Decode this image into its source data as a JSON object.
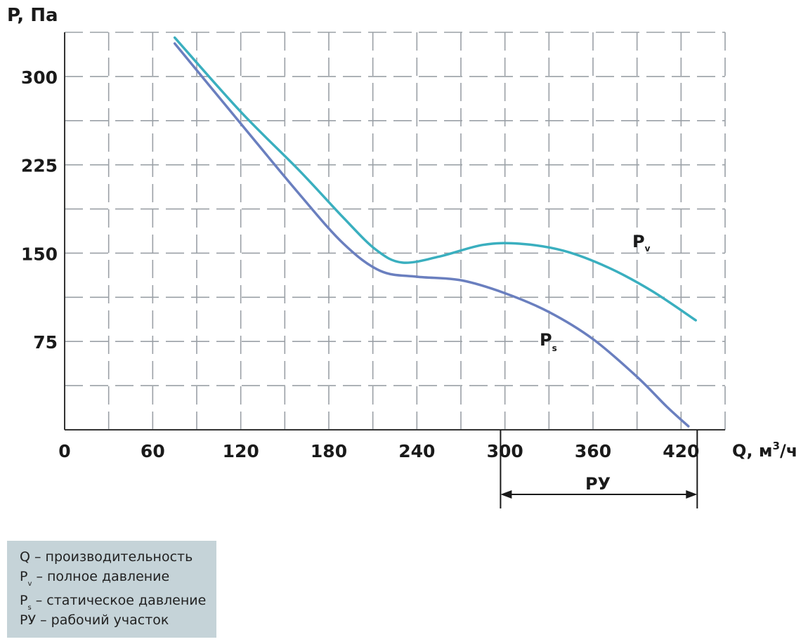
{
  "chart_data": {
    "type": "line",
    "ylabel": "P, Па",
    "xlabel_main": "Q, м",
    "xlabel_sup": "3",
    "xlabel_tail": "/ч",
    "xlim": [
      0,
      450
    ],
    "ylim": [
      0,
      337.5
    ],
    "x_ticks": [
      0,
      60,
      120,
      180,
      240,
      300,
      360,
      420
    ],
    "x_tick_labels": [
      "0",
      "60",
      "120",
      "180",
      "240",
      "300",
      "360",
      "420"
    ],
    "y_ticks": [
      75,
      150,
      225,
      300
    ],
    "y_tick_labels": [
      "75",
      "150",
      "225",
      "300"
    ],
    "grid": true,
    "series": [
      {
        "name_main": "P",
        "name_sub": "v",
        "color": "#3aafbf",
        "x": [
          75,
          120,
          160,
          190,
          212,
          230,
          255,
          285,
          310,
          340,
          370,
          400,
          430
        ],
        "y": [
          333,
          270,
          220,
          180,
          153,
          142,
          147,
          157,
          158,
          152,
          138,
          118,
          93
        ]
      },
      {
        "name_main": "P",
        "name_sub": "s",
        "color": "#6a7fbf",
        "x": [
          75,
          120,
          160,
          190,
          215,
          240,
          270,
          300,
          330,
          360,
          390,
          410,
          425
        ],
        "y": [
          328,
          260,
          200,
          158,
          135,
          130,
          127,
          116,
          100,
          77,
          45,
          20,
          3
        ]
      }
    ],
    "range_annotation": {
      "label": "РУ",
      "x_start": 297,
      "x_end": 431
    }
  },
  "legend": {
    "items": [
      {
        "main": "Q",
        "sub": "",
        "text": "– производительность"
      },
      {
        "main": "P",
        "sub": "v",
        "text": "– полное давление"
      },
      {
        "main": "P",
        "sub": "s",
        "text": "– статическое давление"
      },
      {
        "main": "РУ",
        "sub": "",
        "text": "– рабочий участок"
      }
    ]
  }
}
